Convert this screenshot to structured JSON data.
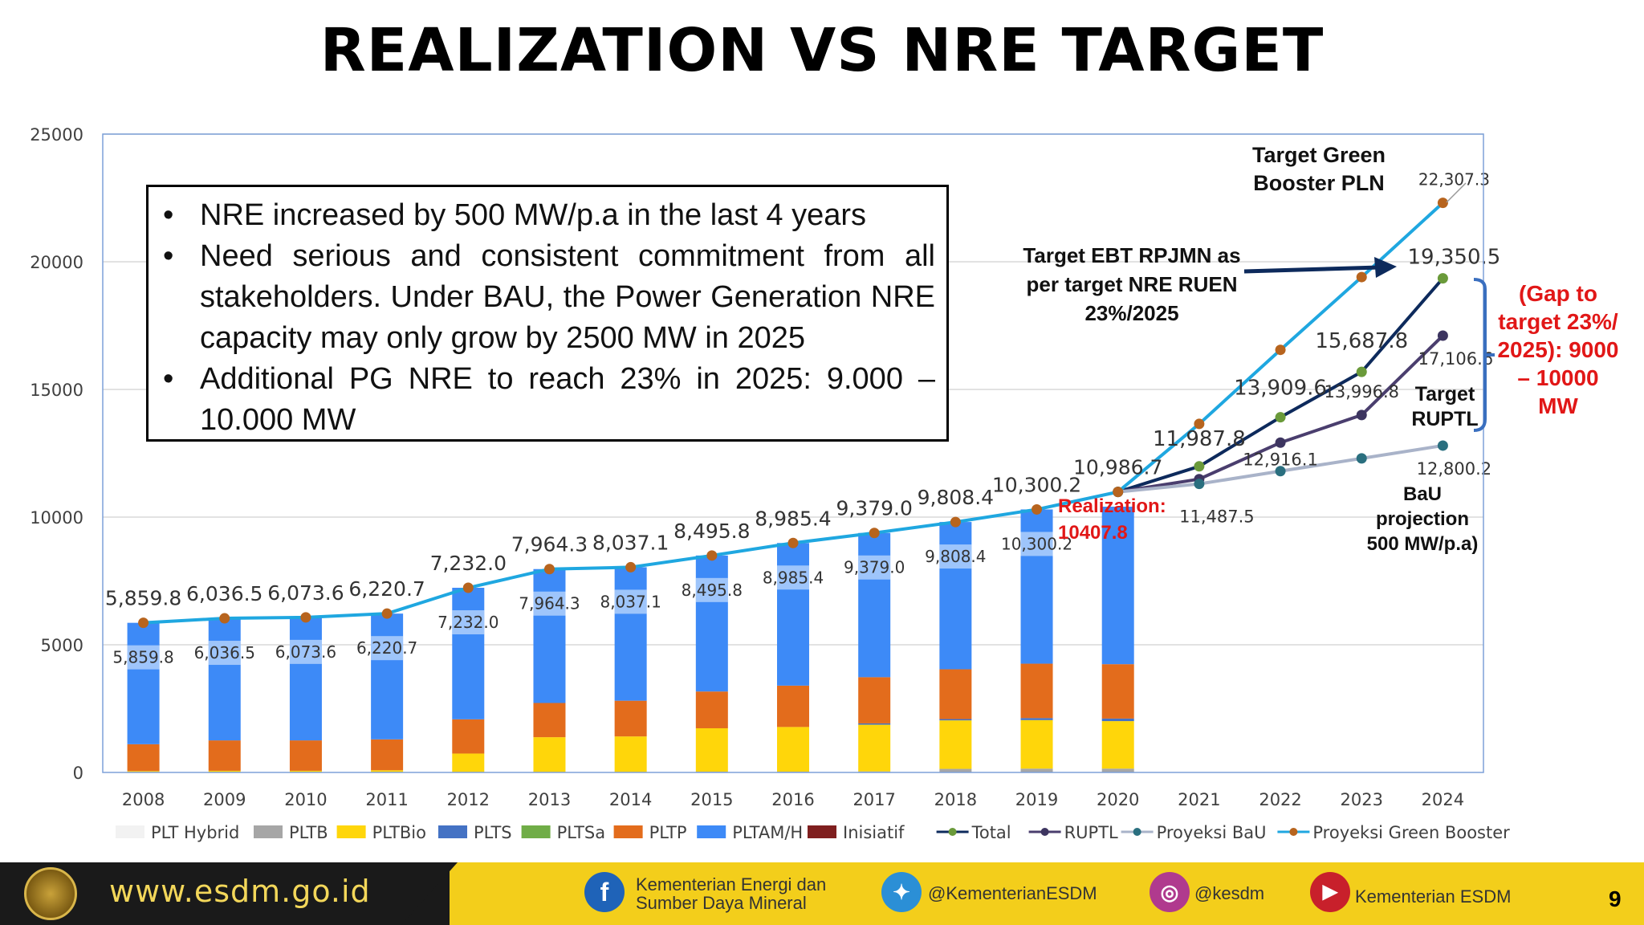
{
  "slide": {
    "title": "REALIZATION VS NRE TARGET",
    "page_number": "9"
  },
  "callout": {
    "bullets": [
      "NRE increased by  500 MW/p.a in the last 4 years",
      "Need serious and consistent commitment from all stakeholders. Under BAU, the Power Generation NRE capacity may only grow by 2500 MW in 2025",
      "Additional PG NRE to reach 23%  in 2025: 9.000 – 10.000 MW"
    ]
  },
  "annotations": {
    "green_booster": "Target Green Booster PLN",
    "ebt_rpjmn": "Target EBT RPJMN as per  target NRE RUEN 23%/2025",
    "gap": "(Gap to target 23%/ 2025): 9000 – 10000 MW",
    "ruptl": "Target RUPTL",
    "bau": "BaU projection 500 MW/p.a)",
    "realization": "Realization:  10407.8"
  },
  "footer": {
    "website": "www.esdm.go.id",
    "facebook": "Kementerian Energi dan Sumber Daya Mineral",
    "twitter": "@KementerianESDM",
    "instagram": "@kesdm",
    "youtube": "Kementerian ESDM",
    "colors": {
      "bar": "#f3ce1b",
      "dark": "#1a1a1a"
    }
  },
  "chart_data": {
    "type": "bar",
    "stacked": true,
    "categories": [
      "2008",
      "2009",
      "2010",
      "2011",
      "2012",
      "2013",
      "2014",
      "2015",
      "2016",
      "2017",
      "2018",
      "2019",
      "2020",
      "2021",
      "2022",
      "2023",
      "2024"
    ],
    "ylim": [
      0,
      25000
    ],
    "yticks": [
      0,
      5000,
      10000,
      15000,
      20000,
      25000
    ],
    "grid": true,
    "legend_position": "bottom",
    "bar_series": [
      {
        "name": "PLT Hybrid",
        "color": "#f2f2f2",
        "values": [
          0,
          0,
          0,
          0,
          0,
          0,
          0,
          0,
          0,
          0,
          0,
          0,
          0
        ]
      },
      {
        "name": "PLTB",
        "color": "#a6a6a6",
        "values": [
          5,
          5,
          5,
          5,
          10,
          10,
          10,
          30,
          30,
          40,
          140,
          150,
          150
        ]
      },
      {
        "name": "PLTBio",
        "color": "#ffd60a",
        "values": [
          50,
          60,
          60,
          80,
          730,
          1370,
          1400,
          1700,
          1750,
          1830,
          1900,
          1900,
          1860
        ]
      },
      {
        "name": "PLTS",
        "color": "#4472c4",
        "values": [
          0,
          0,
          0,
          0,
          0,
          0,
          0,
          0,
          0,
          50,
          50,
          80,
          100
        ]
      },
      {
        "name": "PLTSa",
        "color": "#70ad47",
        "values": [
          0,
          0,
          0,
          0,
          0,
          0,
          0,
          0,
          0,
          0,
          0,
          0,
          0
        ]
      },
      {
        "name": "PLTP",
        "color": "#e36c1c",
        "values": [
          1050,
          1190,
          1190,
          1210,
          1340,
          1340,
          1400,
          1440,
          1620,
          1810,
          1950,
          2130,
          2130
        ]
      },
      {
        "name": "PLTAM/H",
        "color": "#3d8af7",
        "values": [
          4754.8,
          4781.5,
          4818.6,
          4925.7,
          5152.0,
          5244.3,
          5227.1,
          5325.8,
          5585.4,
          5649.0,
          5768.4,
          6040.2,
          6167.8
        ]
      },
      {
        "name": "Inisiatif",
        "color": "#7f1f1f",
        "values": [
          0,
          0,
          0,
          0,
          0,
          0,
          0,
          0,
          0,
          0,
          0,
          0,
          0
        ]
      }
    ],
    "bar_totals": [
      5859.8,
      6036.5,
      6073.6,
      6220.7,
      7232.0,
      7964.3,
      8037.1,
      8495.8,
      8985.4,
      9379.0,
      9808.4,
      10300.2,
      10407.8
    ],
    "bar_total_labels": [
      "5,859.8",
      "6,036.5",
      "6,073.6",
      "6,220.7",
      "7,232.0",
      "7,964.3",
      "8,037.1",
      "8,495.8",
      "8,985.4",
      "9,379.0",
      "9,808.4",
      "10,300.2"
    ],
    "line_series": [
      {
        "name": "Total",
        "color": "#0d2a5c",
        "marker": "#6a9a3a",
        "x": [
          "2020",
          "2021",
          "2022",
          "2023",
          "2024"
        ],
        "values": [
          10986.7,
          11987.8,
          13909.6,
          15687.8,
          19350.5
        ],
        "labels": [
          "10,986.7",
          "11,987.8",
          "13,909.6",
          "15,687.8",
          "19,350.5"
        ]
      },
      {
        "name": "RUPTL",
        "color": "#4a3e6e",
        "marker": "#3d3560",
        "x": [
          "2020",
          "2021",
          "2022",
          "2023",
          "2024"
        ],
        "values": [
          10986.7,
          11487.5,
          12916.1,
          13996.8,
          17106.6
        ],
        "labels": [
          "",
          "11,487.5",
          "12,916.1",
          "13,996.8",
          "17,106.6"
        ]
      },
      {
        "name": "Proyeksi BaU",
        "color": "#a9b3c9",
        "marker": "#2a6f7f",
        "x": [
          "2020",
          "2021",
          "2022",
          "2023",
          "2024"
        ],
        "values": [
          10986.7,
          11300,
          11800,
          12300,
          12800.2
        ],
        "labels": [
          "",
          "",
          "",
          "",
          "12,800.2"
        ]
      },
      {
        "name": "Proyeksi Green Booster",
        "color": "#1fa7e0",
        "marker": "#b7641e",
        "x": [
          "2008",
          "2009",
          "2010",
          "2011",
          "2012",
          "2013",
          "2014",
          "2015",
          "2016",
          "2017",
          "2018",
          "2019",
          "2020",
          "2021",
          "2022",
          "2023",
          "2024"
        ],
        "values": [
          5859.8,
          6036.5,
          6073.6,
          6220.7,
          7232.0,
          7964.3,
          8037.1,
          8495.8,
          8985.4,
          9379.0,
          9808.4,
          10300.2,
          10986.7,
          13650,
          16550,
          19400,
          22307.3
        ],
        "labels": [
          "5,859.8",
          "6,036.5",
          "6,073.6",
          "6,220.7",
          "7,232.0",
          "7,964.3",
          "8,037.1",
          "8,495.8",
          "8,985.4",
          "9,379.0",
          "9,808.4",
          "10,300.2",
          "10,986.7",
          "",
          "",
          "",
          "22,307.3"
        ]
      }
    ]
  }
}
